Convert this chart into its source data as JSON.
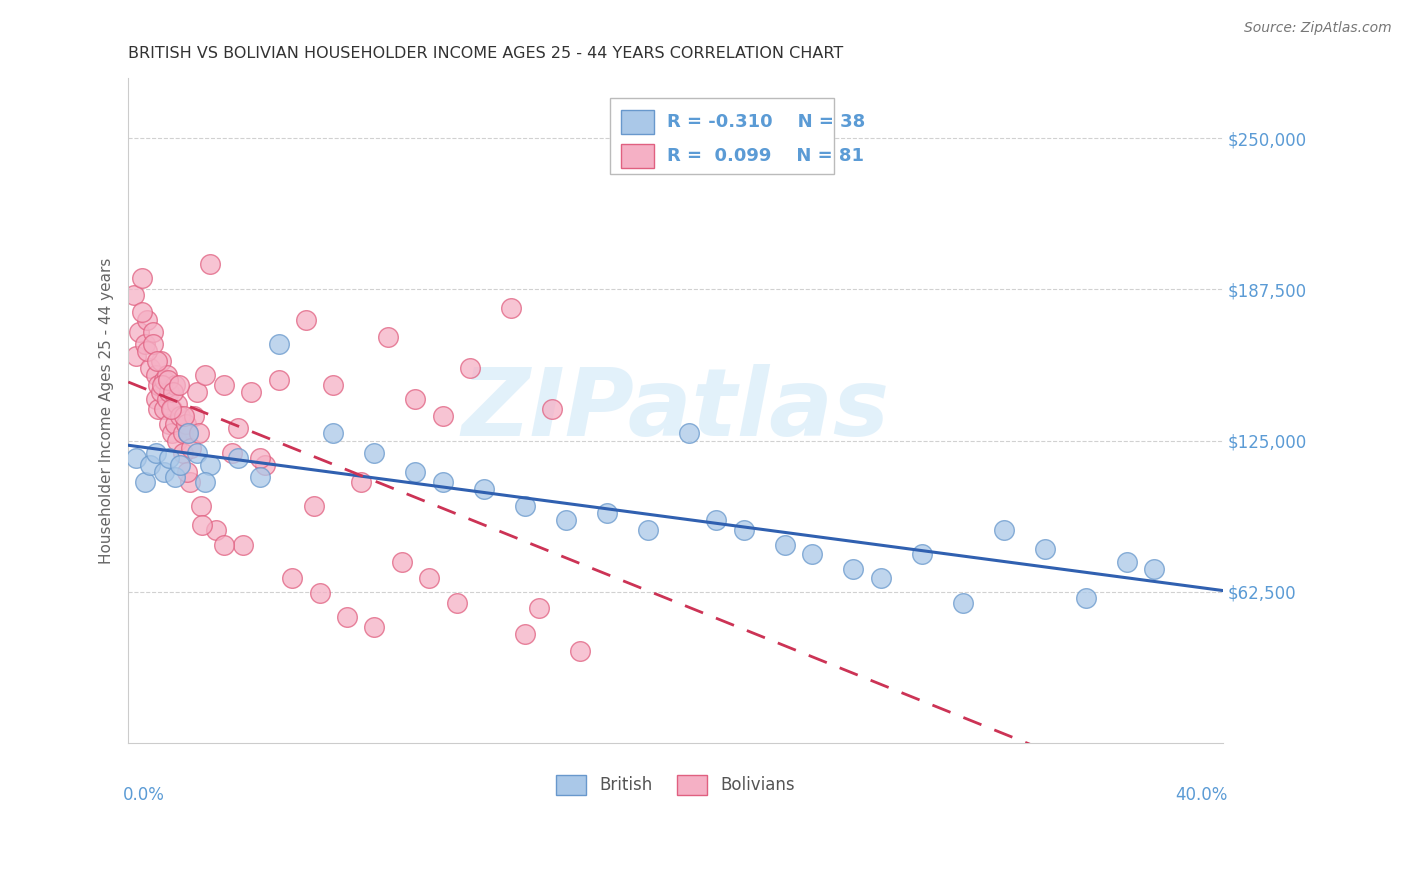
{
  "title": "BRITISH VS BOLIVIAN HOUSEHOLDER INCOME AGES 25 - 44 YEARS CORRELATION CHART",
  "source": "Source: ZipAtlas.com",
  "ylabel": "Householder Income Ages 25 - 44 years",
  "ytick_labels": [
    "$62,500",
    "$125,000",
    "$187,500",
    "$250,000"
  ],
  "ytick_values": [
    62500,
    125000,
    187500,
    250000
  ],
  "xmin": 0.0,
  "xmax": 40.0,
  "ymin": 0,
  "ymax": 275000,
  "british_color": "#aac8e8",
  "bolivian_color": "#f5b0c5",
  "british_edge_color": "#6898cc",
  "bolivian_edge_color": "#e06080",
  "british_line_color": "#3060b0",
  "bolivian_line_color": "#cc3355",
  "british_R": "-0.310",
  "british_N": "38",
  "bolivian_R": "0.099",
  "bolivian_N": "81",
  "legend_label_british": "British",
  "legend_label_bolivian": "Bolivians",
  "background_color": "#ffffff",
  "grid_color": "#cccccc",
  "title_color": "#333333",
  "axis_label_color": "#5b9bd5",
  "watermark_text": "ZIPatlas",
  "watermark_color": "#d0e8f8",
  "british_x": [
    0.3,
    0.6,
    0.8,
    1.0,
    1.3,
    1.5,
    1.7,
    1.9,
    2.2,
    2.5,
    3.0,
    4.0,
    5.5,
    7.5,
    9.0,
    10.5,
    11.5,
    13.0,
    14.5,
    16.0,
    17.5,
    19.0,
    20.5,
    21.5,
    22.5,
    24.0,
    25.0,
    26.5,
    27.5,
    29.0,
    30.5,
    32.0,
    33.5,
    35.0,
    36.5,
    37.5,
    2.8,
    4.8
  ],
  "british_y": [
    118000,
    108000,
    115000,
    120000,
    112000,
    118000,
    110000,
    115000,
    128000,
    120000,
    115000,
    118000,
    165000,
    128000,
    120000,
    112000,
    108000,
    105000,
    98000,
    92000,
    95000,
    88000,
    128000,
    92000,
    88000,
    82000,
    78000,
    72000,
    68000,
    78000,
    58000,
    88000,
    80000,
    60000,
    75000,
    72000,
    108000,
    110000
  ],
  "bolivian_x": [
    0.2,
    0.3,
    0.4,
    0.5,
    0.6,
    0.7,
    0.8,
    0.9,
    1.0,
    1.0,
    1.1,
    1.1,
    1.2,
    1.2,
    1.3,
    1.3,
    1.4,
    1.4,
    1.5,
    1.5,
    1.6,
    1.6,
    1.7,
    1.7,
    1.8,
    1.8,
    1.9,
    2.0,
    2.0,
    2.1,
    2.2,
    2.3,
    2.4,
    2.5,
    2.6,
    2.8,
    3.0,
    3.5,
    4.0,
    4.5,
    5.5,
    6.5,
    7.5,
    8.5,
    9.5,
    10.5,
    11.5,
    12.5,
    14.0,
    15.5,
    0.5,
    0.7,
    0.9,
    1.05,
    1.25,
    1.45,
    1.65,
    1.85,
    2.05,
    2.25,
    2.65,
    3.2,
    4.2,
    3.8,
    5.0,
    6.0,
    7.0,
    8.0,
    9.0,
    10.0,
    12.0,
    14.5,
    1.55,
    2.15,
    2.7,
    3.5,
    4.8,
    6.8,
    11.0,
    15.0,
    16.5
  ],
  "bolivian_y": [
    185000,
    160000,
    170000,
    192000,
    165000,
    175000,
    155000,
    170000,
    152000,
    142000,
    148000,
    138000,
    158000,
    145000,
    150000,
    138000,
    152000,
    142000,
    145000,
    132000,
    138000,
    128000,
    148000,
    132000,
    140000,
    125000,
    135000,
    128000,
    120000,
    132000,
    128000,
    122000,
    135000,
    145000,
    128000,
    152000,
    198000,
    148000,
    130000,
    145000,
    150000,
    175000,
    148000,
    108000,
    168000,
    142000,
    135000,
    155000,
    180000,
    138000,
    178000,
    162000,
    165000,
    158000,
    148000,
    150000,
    145000,
    148000,
    135000,
    108000,
    98000,
    88000,
    82000,
    120000,
    115000,
    68000,
    62000,
    52000,
    48000,
    75000,
    58000,
    45000,
    138000,
    112000,
    90000,
    82000,
    118000,
    98000,
    68000,
    56000,
    38000
  ]
}
